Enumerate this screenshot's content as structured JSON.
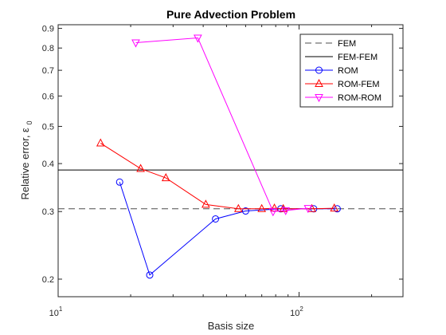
{
  "chart_data": {
    "type": "line",
    "title": "Pure Advection Problem",
    "xlabel": "Basis size",
    "ylabel_main": "Relative error, ",
    "ylabel_symbol": "ε",
    "ylabel_subscript": "0",
    "x_scale": "log",
    "y_scale": "log",
    "xlim": [
      10,
      270
    ],
    "ylim": [
      0.18,
      0.92
    ],
    "x_ticks": [
      {
        "value": 10,
        "base": "10",
        "exp": "1"
      },
      {
        "value": 100,
        "base": "10",
        "exp": "2"
      }
    ],
    "y_ticks": [
      {
        "value": 0.2,
        "label": "0.2"
      },
      {
        "value": 0.3,
        "label": "0.3"
      },
      {
        "value": 0.4,
        "label": "0.4"
      },
      {
        "value": 0.5,
        "label": "0.5"
      },
      {
        "value": 0.6,
        "label": "0.6"
      },
      {
        "value": 0.7,
        "label": "0.7"
      },
      {
        "value": 0.8,
        "label": "0.8"
      },
      {
        "value": 0.9,
        "label": "0.9"
      }
    ],
    "grid": false,
    "legend_position": "top-right",
    "series": [
      {
        "name": "FEM",
        "kind": "hline",
        "y": 0.305,
        "color": "#4d4d4d",
        "dash": "8,5",
        "marker": "none"
      },
      {
        "name": "FEM-FEM",
        "kind": "hline",
        "y": 0.385,
        "color": "#000000",
        "dash": "",
        "marker": "none"
      },
      {
        "name": "ROM",
        "kind": "line",
        "color": "#0000ff",
        "marker": "circle",
        "x": [
          18,
          24,
          45,
          60,
          84,
          115,
          144
        ],
        "y": [
          0.358,
          0.205,
          0.287,
          0.301,
          0.305,
          0.305,
          0.305
        ]
      },
      {
        "name": "ROM-FEM",
        "kind": "line",
        "color": "#ff0000",
        "marker": "triangle-up",
        "x": [
          15,
          22,
          28,
          41,
          56,
          70,
          79,
          86,
          113,
          140
        ],
        "y": [
          0.452,
          0.388,
          0.367,
          0.313,
          0.305,
          0.305,
          0.306,
          0.305,
          0.305,
          0.306
        ]
      },
      {
        "name": "ROM-ROM",
        "kind": "line",
        "color": "#ff00ff",
        "marker": "triangle-down",
        "x": [
          21,
          38,
          78,
          88,
          109
        ],
        "y": [
          0.826,
          0.85,
          0.3,
          0.302,
          0.306
        ]
      }
    ]
  }
}
